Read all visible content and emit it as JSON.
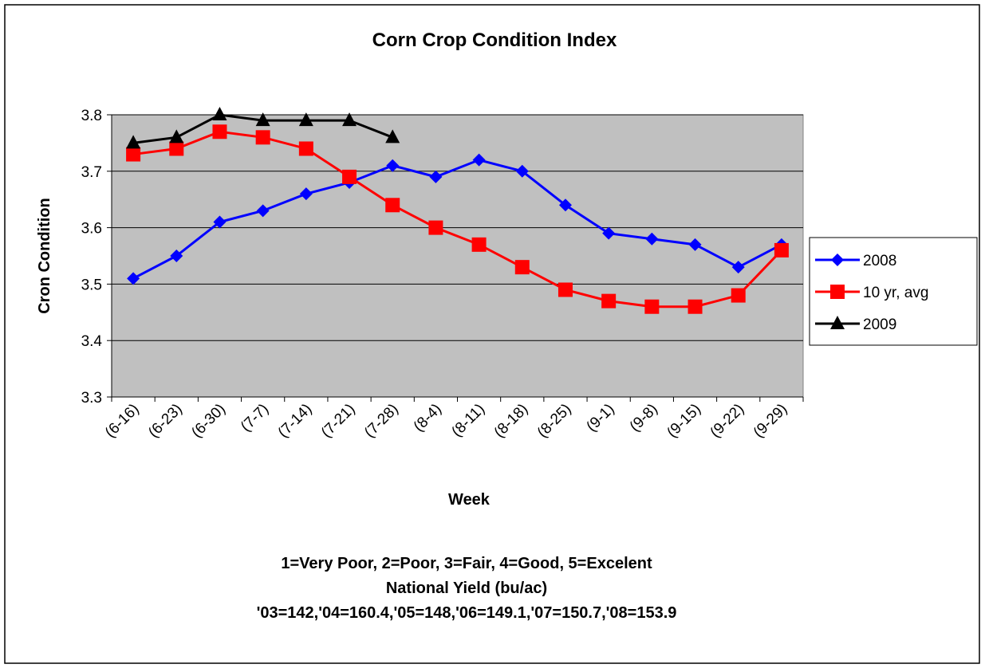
{
  "chart_data": {
    "type": "line",
    "title": "Corn Crop Condition Index",
    "xlabel": "Week",
    "ylabel": "Cron Condition",
    "notes": [
      "1=Very Poor,  2=Poor,  3=Fair,  4=Good,  5=Excelent",
      "National Yield (bu/ac)",
      "'03=142,'04=160.4,'05=148,'06=149.1,'07=150.7,'08=153.9"
    ],
    "categories": [
      "(6-16)",
      "(6-23)",
      "(6-30)",
      "(7-7)",
      "(7-14)",
      "(7-21)",
      "(7-28)",
      "(8-4)",
      "(8-11)",
      "(8-18)",
      "(8-25)",
      "(9-1)",
      "(9-8)",
      "(9-15)",
      "(9-22)",
      "(9-29)"
    ],
    "series": [
      {
        "name": "2008",
        "color": "#0000ff",
        "marker": "diamond",
        "values": [
          3.51,
          3.55,
          3.61,
          3.63,
          3.66,
          3.68,
          3.71,
          3.69,
          3.72,
          3.7,
          3.64,
          3.59,
          3.58,
          3.57,
          3.53,
          3.57
        ]
      },
      {
        "name": "10 yr, avg",
        "color": "#ff0000",
        "marker": "square",
        "values": [
          3.73,
          3.74,
          3.77,
          3.76,
          3.74,
          3.69,
          3.64,
          3.6,
          3.57,
          3.53,
          3.49,
          3.47,
          3.46,
          3.46,
          3.48,
          3.56
        ]
      },
      {
        "name": "2009",
        "color": "#000000",
        "marker": "triangle",
        "values": [
          3.75,
          3.76,
          3.8,
          3.79,
          3.79,
          3.79,
          3.76,
          null,
          null,
          null,
          null,
          null,
          null,
          null,
          null,
          null
        ]
      }
    ],
    "ylim": [
      3.3,
      3.8
    ],
    "yticks": [
      3.3,
      3.4,
      3.5,
      3.6,
      3.7,
      3.8
    ],
    "grid": true,
    "legend": "right"
  }
}
